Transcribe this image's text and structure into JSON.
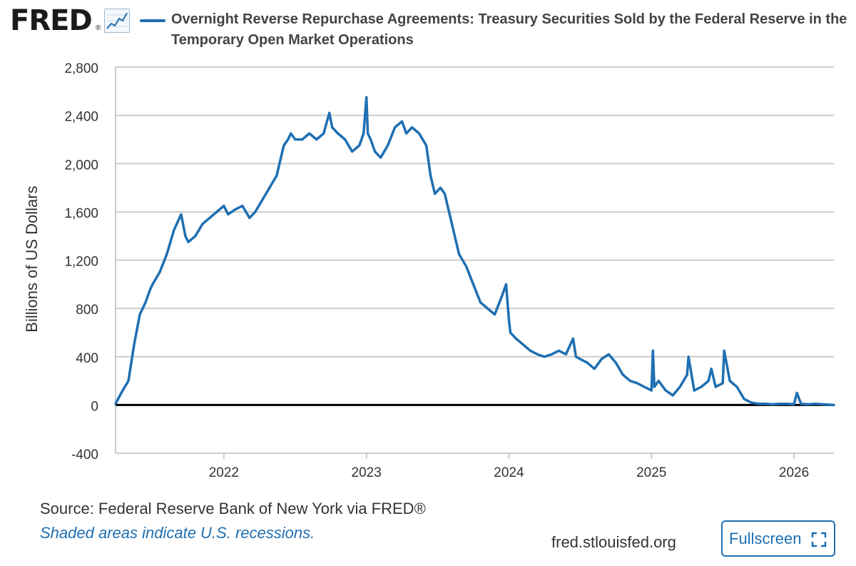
{
  "header": {
    "logo_text": "FRED",
    "logo_reg": "®",
    "title": "Overnight Reverse Repurchase Agreements: Treasury Securities Sold by the Federal Reserve in the Temporary Open Market Operations"
  },
  "colors": {
    "series": "#1f6fb2",
    "zero_line": "#000000",
    "grid": "#cccccc"
  },
  "footer": {
    "source": "Source: Federal Reserve Bank of New York via FRED®",
    "recession_note": "Shaded areas indicate U.S. recessions.",
    "site": "fred.stlouisfed.org",
    "fullscreen_label": "Fullscreen"
  },
  "icons": {
    "logo_graph": "line-chart-icon",
    "fullscreen": "expand-icon"
  },
  "chart_data": {
    "type": "line",
    "title": "Overnight Reverse Repurchase Agreements: Treasury Securities Sold by the Federal Reserve in the Temporary Open Market Operations",
    "xlabel": "",
    "ylabel": "Billions of US Dollars",
    "ylim": [
      -400,
      2800
    ],
    "xlim": [
      2021.24,
      2026.28
    ],
    "y_ticks": [
      -400,
      0,
      400,
      800,
      1200,
      1600,
      2000,
      2400,
      2800
    ],
    "y_tick_labels": [
      "-400",
      "0",
      "400",
      "800",
      "1,200",
      "1,600",
      "2,000",
      "2,400",
      "2,800"
    ],
    "x_ticks": [
      2022,
      2023,
      2024,
      2025,
      2026
    ],
    "x_tick_labels": [
      "2022",
      "2023",
      "2024",
      "2025",
      "2026"
    ],
    "grid": "horizontal",
    "legend": "top-left",
    "series": [
      {
        "name": "Overnight Reverse Repurchase Agreements",
        "x": [
          2021.24,
          2021.28,
          2021.33,
          2021.37,
          2021.41,
          2021.45,
          2021.48,
          2021.5,
          2021.55,
          2021.6,
          2021.65,
          2021.7,
          2021.73,
          2021.75,
          2021.8,
          2021.85,
          2021.9,
          2021.95,
          2022.0,
          2022.03,
          2022.08,
          2022.13,
          2022.18,
          2022.22,
          2022.27,
          2022.32,
          2022.37,
          2022.42,
          2022.45,
          2022.47,
          2022.5,
          2022.55,
          2022.6,
          2022.65,
          2022.7,
          2022.74,
          2022.76,
          2022.8,
          2022.85,
          2022.9,
          2022.95,
          2022.98,
          2023.0,
          2023.01,
          2023.03,
          2023.06,
          2023.1,
          2023.15,
          2023.2,
          2023.25,
          2023.28,
          2023.32,
          2023.37,
          2023.42,
          2023.45,
          2023.48,
          2023.52,
          2023.55,
          2023.6,
          2023.65,
          2023.7,
          2023.75,
          2023.8,
          2023.85,
          2023.9,
          2023.95,
          2023.98,
          2024.0,
          2024.01,
          2024.05,
          2024.1,
          2024.15,
          2024.2,
          2024.25,
          2024.3,
          2024.35,
          2024.4,
          2024.45,
          2024.47,
          2024.5,
          2024.55,
          2024.6,
          2024.65,
          2024.7,
          2024.75,
          2024.8,
          2024.85,
          2024.9,
          2024.95,
          2025.0,
          2025.01,
          2025.02,
          2025.05,
          2025.1,
          2025.15,
          2025.2,
          2025.25,
          2025.26,
          2025.3,
          2025.35,
          2025.4,
          2025.42,
          2025.45,
          2025.5,
          2025.51,
          2025.55,
          2025.6,
          2025.65,
          2025.7,
          2025.75,
          2025.8,
          2025.85,
          2025.9,
          2025.95,
          2026.0,
          2026.02,
          2026.05,
          2026.1,
          2026.15,
          2026.2,
          2026.28
        ],
        "y": [
          10,
          100,
          200,
          500,
          750,
          850,
          950,
          1000,
          1100,
          1250,
          1450,
          1580,
          1400,
          1350,
          1400,
          1500,
          1550,
          1600,
          1650,
          1580,
          1620,
          1650,
          1550,
          1600,
          1700,
          1800,
          1900,
          2150,
          2200,
          2250,
          2200,
          2200,
          2250,
          2200,
          2250,
          2420,
          2300,
          2250,
          2200,
          2100,
          2150,
          2250,
          2550,
          2250,
          2200,
          2100,
          2050,
          2150,
          2300,
          2350,
          2250,
          2300,
          2250,
          2150,
          1900,
          1750,
          1800,
          1750,
          1500,
          1250,
          1150,
          1000,
          850,
          800,
          750,
          900,
          1000,
          700,
          600,
          550,
          500,
          450,
          420,
          400,
          420,
          450,
          420,
          550,
          400,
          380,
          350,
          300,
          380,
          420,
          350,
          250,
          200,
          180,
          150,
          120,
          450,
          150,
          200,
          120,
          80,
          150,
          250,
          400,
          120,
          150,
          200,
          300,
          150,
          180,
          450,
          200,
          150,
          50,
          20,
          10,
          10,
          5,
          10,
          10,
          5,
          100,
          10,
          5,
          10,
          5,
          0
        ]
      }
    ]
  }
}
